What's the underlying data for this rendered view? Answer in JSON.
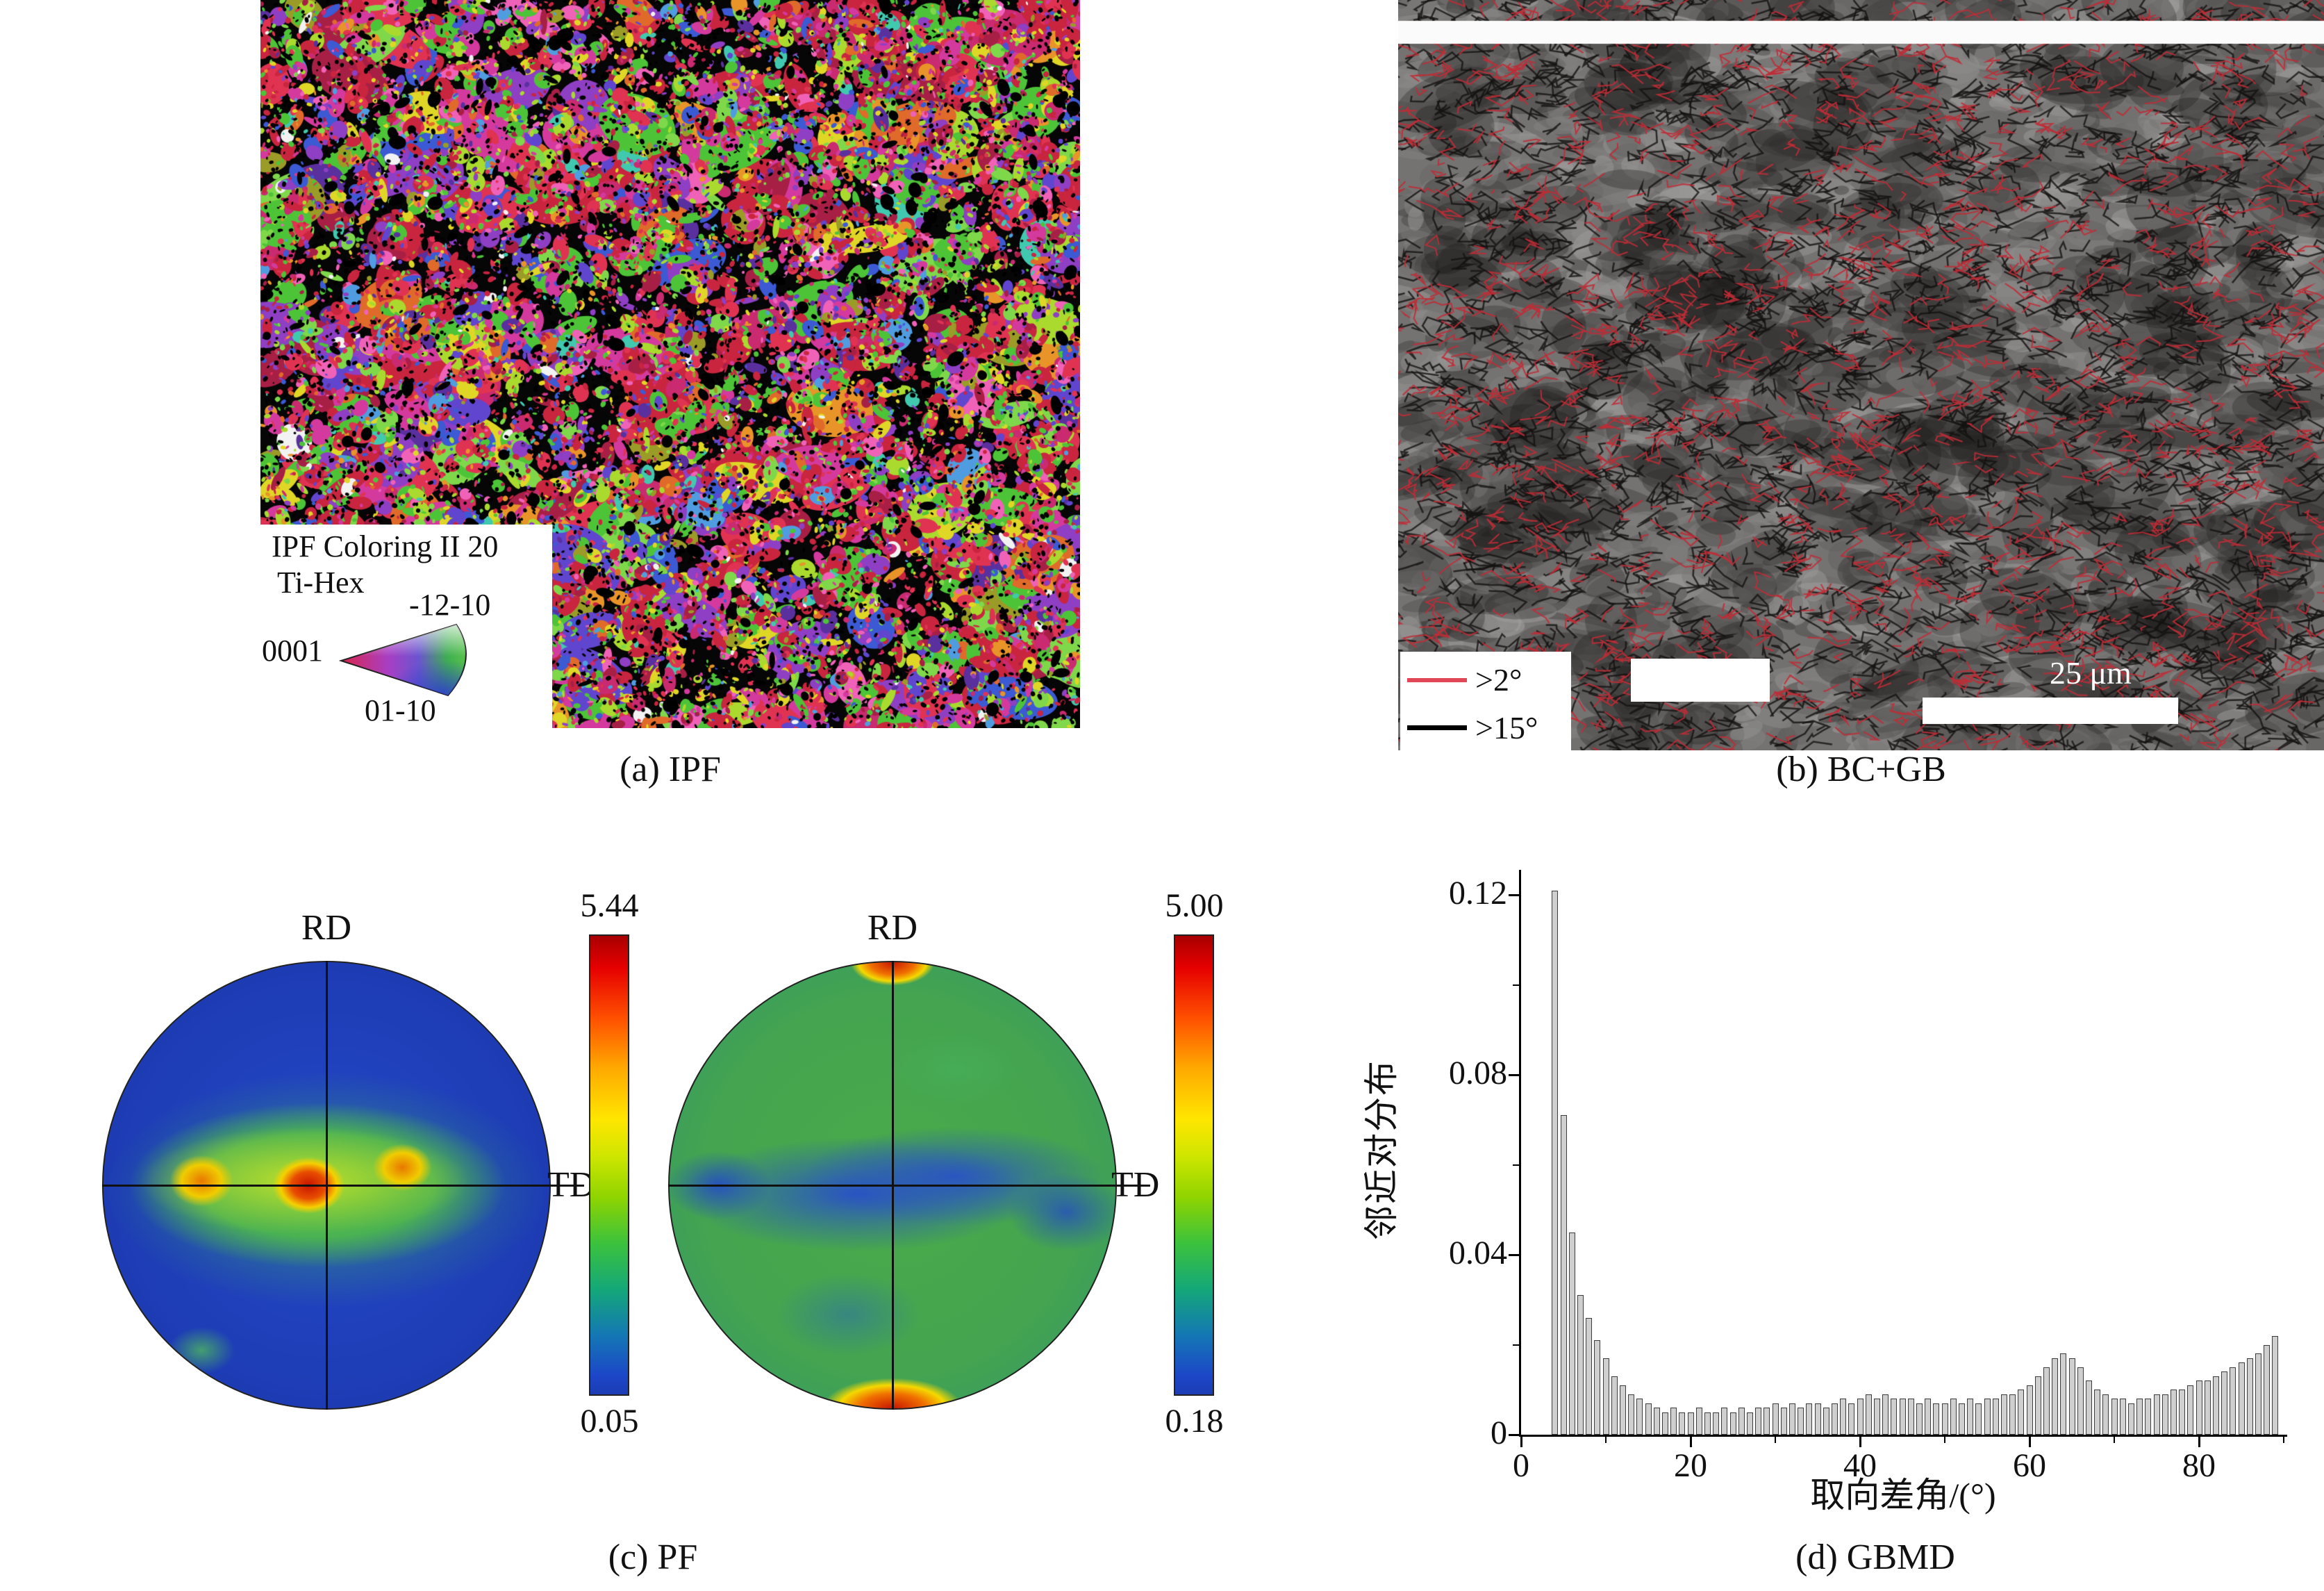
{
  "captions": {
    "a": "(a) IPF",
    "b": "(b) BC+GB",
    "c": "(c) PF",
    "d": "(d) GBMD"
  },
  "ipf_legend": {
    "title": "IPF Coloring II 20",
    "subtitle": "Ti-Hex",
    "corner_0001": "0001",
    "corner_top": "-12-10",
    "corner_bottom": "01-10"
  },
  "gb_legend": {
    "low_angle_label": ">2°",
    "high_angle_label": ">15°",
    "low_angle_color": "#e04656",
    "high_angle_color": "#000000",
    "scale_bar_label": "25 μm"
  },
  "pole_figures": {
    "rd_label": "RD",
    "td_label": "TD",
    "pf1_max": "5.44",
    "pf1_min": "0.05",
    "pf2_max": "5.00",
    "pf2_min": "0.18"
  },
  "chart_data": [
    {
      "id": "gbmd",
      "type": "bar",
      "title": "(d) GBMD",
      "xlabel": "取向差角/(°)",
      "ylabel": "邻近对分布",
      "xlim": [
        0,
        90
      ],
      "ylim": [
        0,
        0.125
      ],
      "x_ticks": [
        "0",
        "20",
        "40",
        "60",
        "80"
      ],
      "x_tick_values": [
        0,
        20,
        40,
        60,
        80
      ],
      "x_minor_tick_values": [
        10,
        30,
        50,
        70,
        90
      ],
      "y_ticks": [
        "0",
        "0.04",
        "0.08",
        "0.12"
      ],
      "y_tick_values": [
        0,
        0.04,
        0.08,
        0.12
      ],
      "y_minor_tick_values": [
        0.02,
        0.06,
        0.1
      ],
      "x_start_deg": 4,
      "bin_width_deg": 1,
      "values": [
        0.121,
        0.071,
        0.045,
        0.031,
        0.026,
        0.021,
        0.017,
        0.013,
        0.011,
        0.009,
        0.008,
        0.007,
        0.006,
        0.005,
        0.006,
        0.005,
        0.005,
        0.006,
        0.005,
        0.005,
        0.006,
        0.005,
        0.006,
        0.005,
        0.006,
        0.006,
        0.007,
        0.006,
        0.007,
        0.006,
        0.007,
        0.007,
        0.006,
        0.007,
        0.008,
        0.007,
        0.008,
        0.009,
        0.008,
        0.009,
        0.008,
        0.008,
        0.008,
        0.007,
        0.008,
        0.007,
        0.007,
        0.008,
        0.007,
        0.008,
        0.007,
        0.008,
        0.008,
        0.009,
        0.009,
        0.01,
        0.011,
        0.013,
        0.015,
        0.017,
        0.018,
        0.017,
        0.015,
        0.012,
        0.01,
        0.009,
        0.008,
        0.008,
        0.007,
        0.008,
        0.008,
        0.009,
        0.009,
        0.01,
        0.01,
        0.011,
        0.012,
        0.012,
        0.013,
        0.014,
        0.015,
        0.016,
        0.017,
        0.018,
        0.02,
        0.022
      ]
    },
    {
      "id": "pf_left",
      "type": "heatmap",
      "title": "(c) PF left pole figure",
      "scale_max": 5.44,
      "scale_min": 0.05,
      "axes": [
        "RD",
        "TD"
      ]
    },
    {
      "id": "pf_right",
      "type": "heatmap",
      "title": "(c) PF right pole figure",
      "scale_max": 5.0,
      "scale_min": 0.18,
      "axes": [
        "RD",
        "TD"
      ]
    }
  ]
}
